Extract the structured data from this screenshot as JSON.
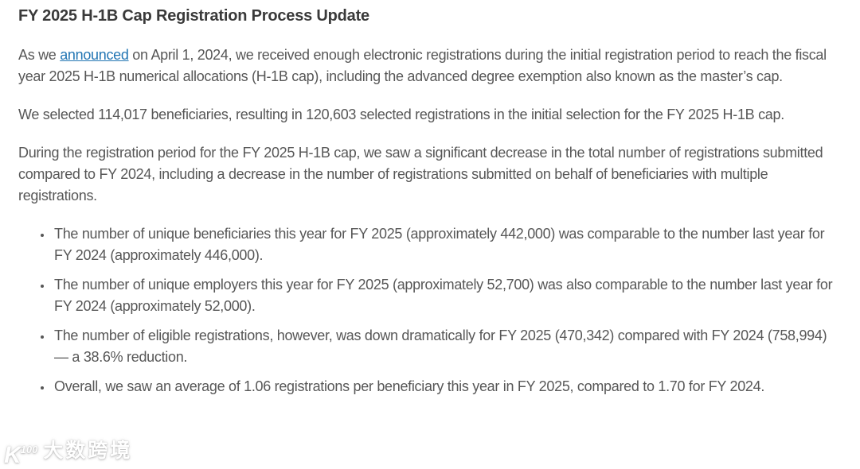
{
  "page": {
    "title": "FY 2025 H-1B Cap Registration Process Update"
  },
  "content": {
    "paragraph1": {
      "before": "As we ",
      "link_text": "announced",
      "after": " on April 1, 2024, we received enough electronic registrations during the initial registration period to reach the fiscal year 2025 H-1B numerical allocations (H-1B cap), including the advanced degree exemption also known as the master’s cap."
    },
    "paragraph2": "We selected 114,017 beneficiaries, resulting in 120,603 selected registrations in the initial selection for the FY 2025 H-1B cap.",
    "paragraph3": "During the registration period for the FY 2025 H-1B cap, we saw a significant decrease in the total number of registrations submitted compared to FY 2024, including a decrease in the number of registrations submitted on behalf of beneficiaries with multiple registrations.",
    "bullets": [
      "The number of unique beneficiaries this year for FY 2025 (approximately 442,000) was comparable to the number last year for FY 2024 (approximately 446,000).",
      "The number of unique employers this year for FY 2025 (approximately 52,700) was also comparable to the number last year for FY 2024 (approximately 52,000).",
      "The number of eligible registrations, however, was down dramatically for FY 2025 (470,342) compared with FY 2024 (758,994) — a 38.6% reduction.",
      "Overall, we saw an average of 1.06 registrations per beneficiary this year in FY 2025, compared to 1.70 for FY 2024."
    ]
  },
  "key_figures": {
    "selected_beneficiaries": "114,017",
    "selected_registrations": "120,603",
    "unique_beneficiaries_fy2025": "442,000",
    "unique_beneficiaries_fy2024": "446,000",
    "unique_employers_fy2025": "52,700",
    "unique_employers_fy2024": "52,000",
    "eligible_registrations_fy2025": "470,342",
    "eligible_registrations_fy2024": "758,994",
    "reduction_percent": "38.6%",
    "avg_registrations_per_beneficiary_fy2025": "1.06",
    "avg_registrations_per_beneficiary_fy2024": "1.70"
  },
  "watermark": {
    "icon_main": "K",
    "icon_sup": "100",
    "text": "大数跨境"
  },
  "colors": {
    "link": "#2376b4",
    "heading_text": "#3a3a3a",
    "body_text": "#575757",
    "background": "#ffffff",
    "watermark_text": "#ffffff"
  }
}
